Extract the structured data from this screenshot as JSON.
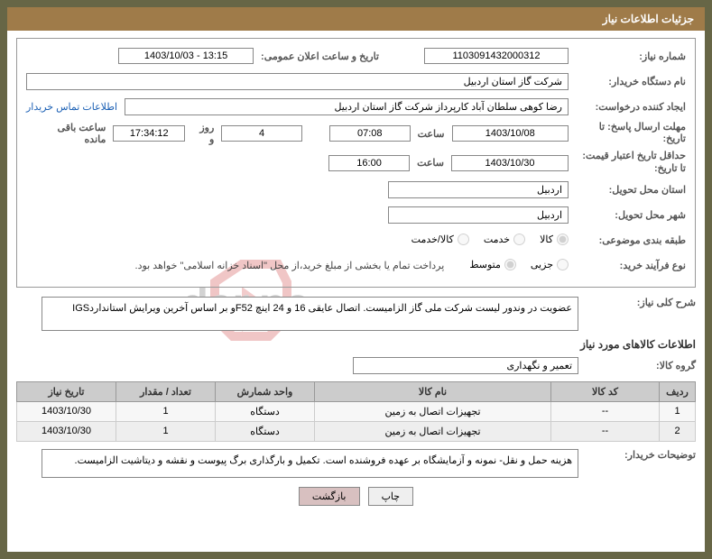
{
  "header": {
    "title": "جزئیات اطلاعات نیاز"
  },
  "labels": {
    "need_no": "شماره نیاز:",
    "announce_dt": "تاریخ و ساعت اعلان عمومی:",
    "buyer_org": "نام دستگاه خریدار:",
    "requester": "ایجاد کننده درخواست:",
    "contact_link": "اطلاعات تماس خریدار",
    "deadline": "مهلت ارسال پاسخ: تا تاریخ:",
    "saat": "ساعت",
    "rooz_va": "روز و",
    "remaining": "ساعت باقی مانده",
    "price_validity": "حداقل تاریخ اعتبار قیمت: تا تاریخ:",
    "province": "استان محل تحویل:",
    "city": "شهر محل تحویل:",
    "category": "طبقه بندی موضوعی:",
    "process_type": "نوع فرآیند خرید:",
    "process_note": "پرداخت تمام یا بخشی از مبلغ خرید،از محل \"اسناد خزانه اسلامی\" خواهد بود.",
    "general_desc": "شرح کلی نیاز:",
    "items_section": "اطلاعات کالاهای مورد نیاز",
    "goods_group": "گروه کالا:",
    "buyer_notes": "توضیحات خریدار:"
  },
  "values": {
    "need_no": "1103091432000312",
    "announce_dt": "1403/10/03 - 13:15",
    "buyer_org": "شرکت گاز استان اردبیل",
    "requester": "رضا کوهی سلطان آباد کارپرداز شرکت گاز استان اردبیل",
    "deadline_date": "1403/10/08",
    "deadline_time": "07:08",
    "remaining_days": "4",
    "remaining_time": "17:34:12",
    "price_validity_date": "1403/10/30",
    "price_validity_time": "16:00",
    "province": "اردبیل",
    "city": "اردبیل",
    "general_desc": "عضویت در وندور لیست شرکت ملی گاز الزامیست. اتصال عایقی 16 و 24 اینچ F52و بر اساس آخرین ویرایش استانداردIGS",
    "goods_group": "تعمیر و نگهداری",
    "buyer_notes": "هزینه حمل و نقل- نمونه و آزمایشگاه بر عهده فروشنده است. تکمیل و بارگذاری برگ پیوست و نقشه و دیتاشیت الزامیست."
  },
  "radios": {
    "category": [
      {
        "label": "کالا",
        "checked": true
      },
      {
        "label": "خدمت",
        "checked": false
      },
      {
        "label": "کالا/خدمت",
        "checked": false
      }
    ],
    "process": [
      {
        "label": "جزیی",
        "checked": false
      },
      {
        "label": "متوسط",
        "checked": true
      }
    ]
  },
  "table": {
    "headers": [
      "ردیف",
      "کد کالا",
      "نام کالا",
      "واحد شمارش",
      "تعداد / مقدار",
      "تاریخ نیاز"
    ],
    "rows": [
      [
        "1",
        "--",
        "تجهیزات اتصال به زمین",
        "دستگاه",
        "1",
        "1403/10/30"
      ],
      [
        "2",
        "--",
        "تجهیزات اتصال به زمین",
        "دستگاه",
        "1",
        "1403/10/30"
      ]
    ],
    "col_widths": [
      "40px",
      "120px",
      "auto",
      "110px",
      "110px",
      "110px"
    ]
  },
  "buttons": {
    "print": "چاپ",
    "back": "بازگشت"
  },
  "colors": {
    "frame": "#676646",
    "header_bg": "#9f7b49",
    "header_fg": "#ffffff",
    "th_bg": "#cccccc",
    "logo_red": "#c71f1f",
    "logo_gray": "#555555"
  }
}
